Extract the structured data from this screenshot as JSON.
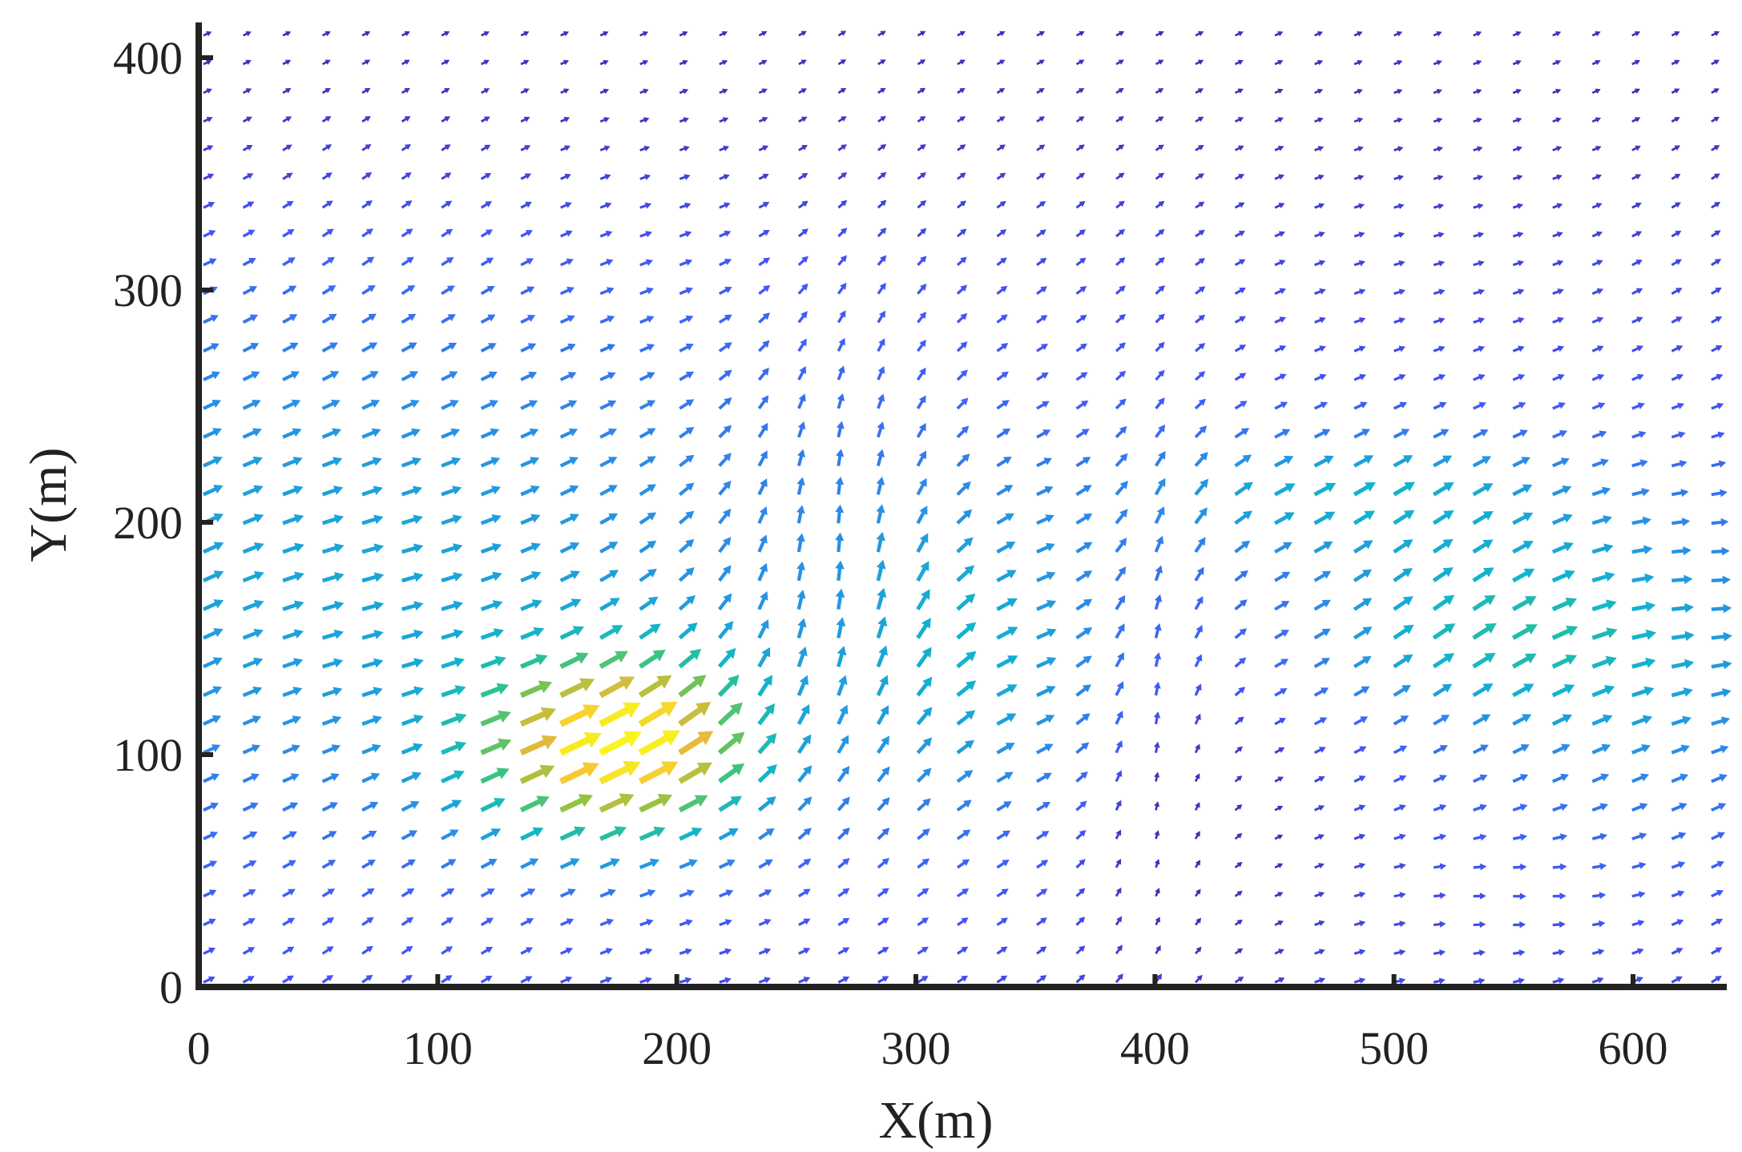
{
  "chart_data": {
    "type": "quiver",
    "title": "",
    "xlabel": "X(m)",
    "ylabel": "Y(m)",
    "xlim": [
      0,
      640
    ],
    "ylim": [
      0,
      415
    ],
    "xticks": [
      0,
      100,
      200,
      300,
      400,
      500,
      600
    ],
    "xtick_labels": [
      "0",
      "100",
      "200",
      "300",
      "400",
      "500",
      "600"
    ],
    "yticks": [
      0,
      100,
      200,
      300,
      400
    ],
    "ytick_labels": [
      "0",
      "100",
      "200",
      "300",
      "400"
    ],
    "grid": false,
    "legend": "none",
    "colormap": "parula",
    "colormap_stops": [
      "#3e26a8",
      "#4355f6",
      "#2c8ce6",
      "#12b3cf",
      "#2dc38f",
      "#91c340",
      "#f5b93a",
      "#f9f41e"
    ],
    "grid_spacing_m": {
      "x": 16.6,
      "y": 12.35
    },
    "vector_field": {
      "description": "Velocity vectors on a regular grid; arrow color encodes magnitude (blue = low, yellow = high)",
      "peak_region": {
        "x": 170,
        "y": 100
      },
      "secondary_peak": {
        "x": 525,
        "y": 150
      }
    }
  }
}
